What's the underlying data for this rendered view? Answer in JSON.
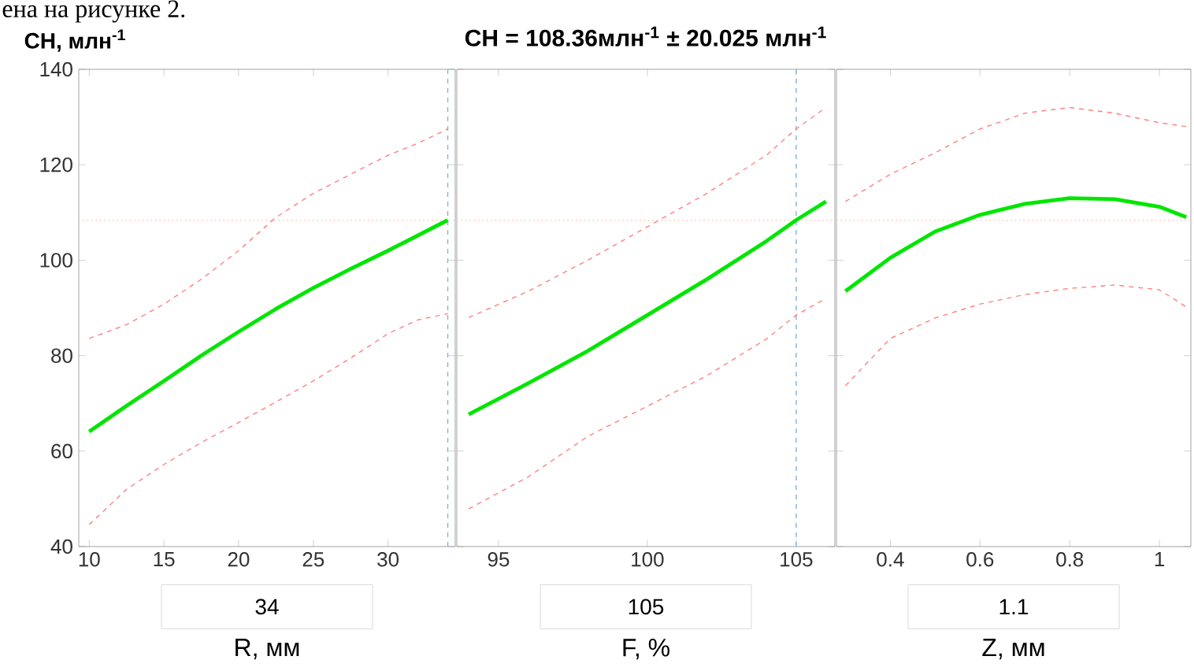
{
  "chart_data": [
    {
      "type": "line",
      "ylabel": "CH, млн$^{-1}$",
      "xlabel": "R, мм",
      "annotations": [
        "ена на рисунке 2.",
        "34"
      ],
      "xlim": [
        9.3,
        34.5
      ],
      "ylim": [
        40,
        140
      ],
      "xticks": [
        10,
        15,
        20,
        25,
        30
      ],
      "yticks": [
        40,
        60,
        80,
        100,
        120,
        140
      ],
      "series": [
        {
          "color": "#00e600",
          "x": [
            10,
            12.5,
            15,
            17.5,
            20,
            22.5,
            25,
            27.5,
            30,
            32,
            34
          ],
          "values": [
            64.1,
            69.5,
            74.7,
            80,
            85,
            89.8,
            94.2,
            98.2,
            102,
            105.2,
            108.4
          ]
        },
        {
          "color": "#ff8080",
          "line_style": "dashed",
          "x": [
            10,
            12.5,
            15,
            17.5,
            20,
            22.5,
            25,
            27.5,
            30,
            32,
            34
          ],
          "values": [
            83.6,
            86.5,
            90.8,
            96,
            102,
            109,
            114,
            118,
            122,
            124.5,
            127.5
          ]
        },
        {
          "color": "#ff8080",
          "line_style": "dashed",
          "x": [
            10,
            12.5,
            15,
            17.5,
            20,
            22.5,
            25,
            27.5,
            30,
            32,
            34
          ],
          "values": [
            44.6,
            52,
            57.2,
            61.8,
            66,
            70.3,
            74.7,
            79.5,
            84.6,
            87.5,
            88.8
          ]
        }
      ],
      "ref_lines": [
        {
          "axis": "y",
          "value": 108.36,
          "color": "#ffc0b0",
          "line_style": "dotted"
        },
        {
          "axis": "x",
          "value": 34,
          "color": "#80b4e0",
          "line_style": "dashed"
        }
      ]
    },
    {
      "type": "line",
      "title": "CH = 108.36млн$^{-1}$ ±  20.025 млн$^{-1}$",
      "xlabel": "F, %",
      "annotations": [
        "105"
      ],
      "xlim": [
        93.6,
        106.3
      ],
      "ylim": [
        40,
        140
      ],
      "xticks": [
        95,
        100,
        105
      ],
      "yticks": [
        40,
        60,
        80,
        100,
        120,
        140
      ],
      "tick_labels": "x",
      "series": [
        {
          "color": "#00e600",
          "x": [
            94,
            96,
            98,
            100,
            102,
            104,
            105,
            106
          ],
          "values": [
            67.7,
            74.2,
            81,
            88.5,
            96,
            104,
            108.4,
            112.3
          ]
        },
        {
          "color": "#ff8080",
          "line_style": "dashed",
          "x": [
            94,
            96,
            98,
            100,
            102,
            104,
            105,
            106
          ],
          "values": [
            88,
            93.5,
            100,
            107,
            114,
            122,
            127.5,
            132
          ]
        },
        {
          "color": "#ff8080",
          "line_style": "dashed",
          "x": [
            94,
            96,
            98,
            100,
            102,
            104,
            105,
            106
          ],
          "values": [
            47.9,
            54.6,
            63.1,
            69.4,
            75.8,
            83.5,
            88.5,
            92
          ]
        }
      ],
      "ref_lines": [
        {
          "axis": "y",
          "value": 108.36,
          "color": "#ffc0b0",
          "line_style": "dotted"
        },
        {
          "axis": "x",
          "value": 105,
          "color": "#80b4e0",
          "line_style": "dashed"
        }
      ]
    },
    {
      "type": "line",
      "xlabel": "Z, мм",
      "annotations": [
        "1.1"
      ],
      "xlim": [
        0.28,
        1.07
      ],
      "ylim": [
        40,
        140
      ],
      "xticks": [
        0.4,
        0.6,
        0.8,
        1
      ],
      "yticks": [
        40,
        60,
        80,
        100,
        120,
        140
      ],
      "tick_labels": "x",
      "series": [
        {
          "color": "#00e600",
          "x": [
            0.3,
            0.4,
            0.5,
            0.6,
            0.7,
            0.8,
            0.9,
            1.0,
            1.06
          ],
          "values": [
            93.5,
            100.5,
            106,
            109.5,
            111.8,
            113,
            112.8,
            111.2,
            109
          ]
        },
        {
          "color": "#ff8080",
          "line_style": "dashed",
          "x": [
            0.3,
            0.4,
            0.5,
            0.6,
            0.7,
            0.8,
            0.9,
            1.0,
            1.06
          ],
          "values": [
            112.3,
            118,
            122.5,
            127.5,
            130.8,
            132,
            130.8,
            128.8,
            128
          ]
        },
        {
          "color": "#ff8080",
          "line_style": "dashed",
          "x": [
            0.3,
            0.4,
            0.5,
            0.6,
            0.7,
            0.8,
            0.9,
            1.0,
            1.06
          ],
          "values": [
            73.7,
            83.6,
            87.9,
            90.8,
            92.8,
            94.1,
            94.8,
            93.8,
            90.2
          ]
        }
      ],
      "ref_lines": [
        {
          "axis": "y",
          "value": 108.36,
          "color": "#ffc0b0",
          "line_style": "dotted"
        }
      ]
    }
  ]
}
